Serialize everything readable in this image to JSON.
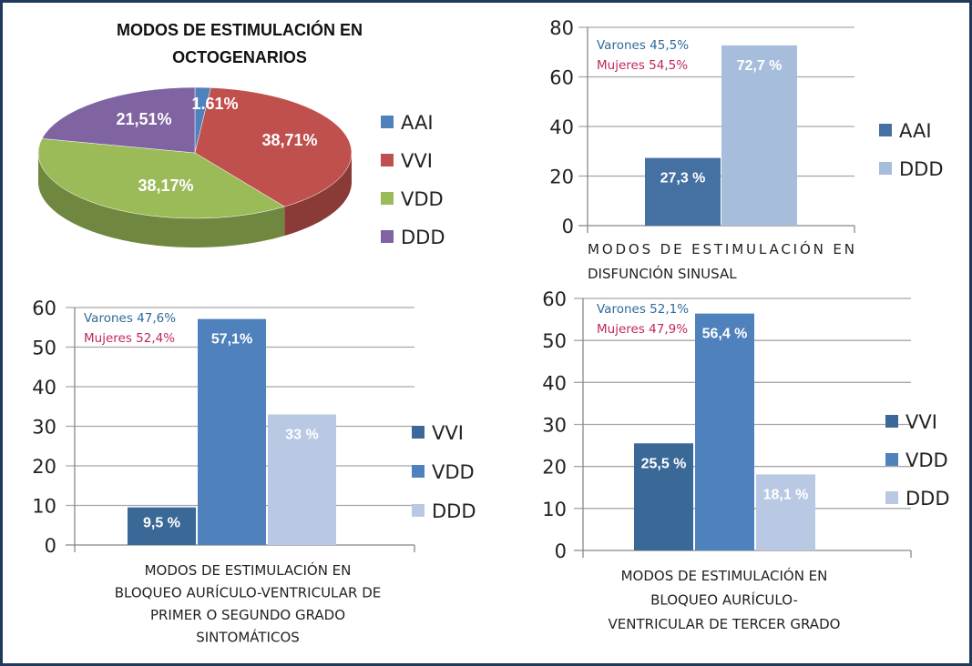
{
  "chart_data": [
    {
      "type": "pie",
      "title_lines": [
        "MODOS DE ESTIMULACIÓN EN",
        "OCTOGENARIOS"
      ],
      "categories": [
        "AAI",
        "VVI",
        "VDD",
        "DDD"
      ],
      "values": [
        1.61,
        38.71,
        38.17,
        21.51
      ],
      "data_labels": [
        "1.61%",
        "38,71%",
        "38,17%",
        "21,51%"
      ],
      "colors": [
        "#4f81bd",
        "#c0504d",
        "#9bbb59",
        "#8064a2"
      ],
      "style": "3d",
      "legend": "right"
    },
    {
      "type": "bar",
      "caption_lines": [
        "MODOS DE ESTIMULACIÓN EN",
        "DISFUNCIÓN SINUSAL"
      ],
      "series": [
        {
          "name": "AAI",
          "value": 27.3,
          "label": "27,3 %"
        },
        {
          "name": "DDD",
          "value": 72.7,
          "label": "72,7 %"
        }
      ],
      "colors": [
        "#4470a2",
        "#a7bddc"
      ],
      "ylim": [
        0,
        80
      ],
      "yticks": [
        0,
        20,
        40,
        60,
        80
      ],
      "notes": [
        {
          "text": "Varones 45,5%",
          "color": "#2f6a9a"
        },
        {
          "text": "Mujeres 54,5%",
          "color": "#c0285a"
        }
      ],
      "grid": true,
      "legend": "right"
    },
    {
      "type": "bar",
      "caption_lines": [
        "MODOS DE ESTIMULACIÓN EN",
        "BLOQUEO AURÍCULO-VENTRICULAR DE",
        "PRIMER O SEGUNDO GRADO",
        "SINTOMÁTICOS"
      ],
      "series": [
        {
          "name": "VVI",
          "value": 9.5,
          "label": "9,5 %"
        },
        {
          "name": "VDD",
          "value": 57.1,
          "label": "57,1%"
        },
        {
          "name": "DDD",
          "value": 33,
          "label": "33 %"
        }
      ],
      "colors": [
        "#3a6897",
        "#4f81bd",
        "#b9c9e3"
      ],
      "ylim": [
        0,
        60
      ],
      "yticks": [
        0,
        10,
        20,
        30,
        40,
        50,
        60
      ],
      "notes": [
        {
          "text": "Varones 47,6%",
          "color": "#2f6a9a"
        },
        {
          "text": "Mujeres 52,4%",
          "color": "#c0285a"
        }
      ],
      "grid": true,
      "legend": "right"
    },
    {
      "type": "bar",
      "caption_lines": [
        "MODOS DE ESTIMULACIÓN EN",
        "BLOQUEO AURÍCULO-",
        "VENTRICULAR DE TERCER GRADO"
      ],
      "series": [
        {
          "name": "VVI",
          "value": 25.5,
          "label": "25,5 %"
        },
        {
          "name": "VDD",
          "value": 56.4,
          "label": "56,4 %"
        },
        {
          "name": "DDD",
          "value": 18.1,
          "label": "18,1 %"
        }
      ],
      "colors": [
        "#3a6897",
        "#4f81bd",
        "#b9c9e3"
      ],
      "ylim": [
        0,
        60
      ],
      "yticks": [
        0,
        10,
        20,
        30,
        40,
        50,
        60
      ],
      "notes": [
        {
          "text": "Varones 52,1%",
          "color": "#2f6a9a"
        },
        {
          "text": "Mujeres 47,9%",
          "color": "#c0285a"
        }
      ],
      "grid": true,
      "legend": "right"
    }
  ]
}
